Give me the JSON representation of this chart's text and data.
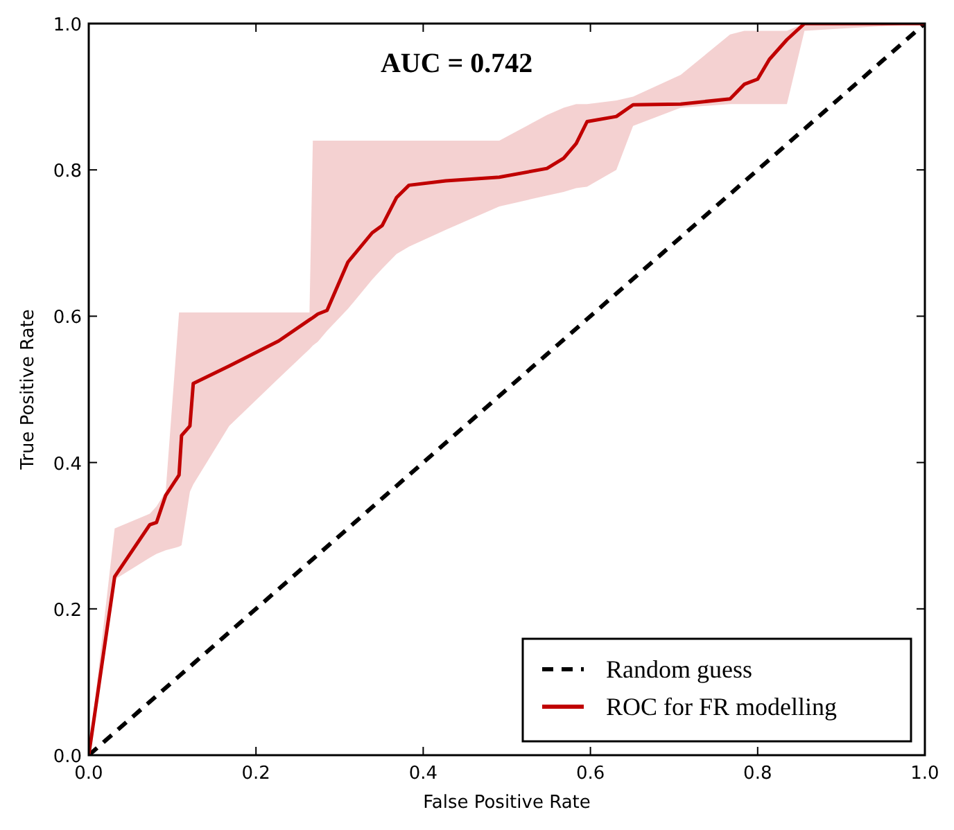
{
  "chart_data": {
    "type": "line",
    "xlabel": "False Positive Rate",
    "ylabel": "True Positive Rate",
    "annotations": [
      "AUC = 0.742"
    ],
    "xlim": [
      0,
      1
    ],
    "ylim": [
      0,
      1
    ],
    "xticks": [
      {
        "value": 0,
        "label": "0.0"
      },
      {
        "value": 0.2,
        "label": "0.2"
      },
      {
        "value": 0.4,
        "label": "0.4"
      },
      {
        "value": 0.6,
        "label": "0.6"
      },
      {
        "value": 0.8,
        "label": "0.8"
      },
      {
        "value": 1,
        "label": "1.0"
      }
    ],
    "yticks": [
      {
        "value": 0,
        "label": "0.0"
      },
      {
        "value": 0.2,
        "label": "0.2"
      },
      {
        "value": 0.4,
        "label": "0.4"
      },
      {
        "value": 0.6,
        "label": "0.6"
      },
      {
        "value": 0.8,
        "label": "0.8"
      },
      {
        "value": 1,
        "label": "1.0"
      }
    ],
    "grid": false,
    "legend": "bottom right",
    "marker": "none",
    "series": [
      {
        "name": "Random guess",
        "color": "#000000",
        "line_style": "dashed",
        "x": [
          0,
          1
        ],
        "values": [
          0,
          1
        ]
      },
      {
        "name": "ROC for FR modelling",
        "color": "#c00000",
        "line_style": "solid",
        "x": [
          0,
          0.031,
          0.073,
          0.081,
          0.092,
          0.108,
          0.111,
          0.121,
          0.125,
          0.168,
          0.227,
          0.264,
          0.268,
          0.274,
          0.285,
          0.31,
          0.339,
          0.351,
          0.368,
          0.383,
          0.427,
          0.491,
          0.548,
          0.568,
          0.583,
          0.596,
          0.631,
          0.651,
          0.708,
          0.767,
          0.784,
          0.8,
          0.814,
          0.835,
          0.856,
          1
        ],
        "values": [
          0,
          0.244,
          0.315,
          0.318,
          0.355,
          0.383,
          0.437,
          0.45,
          0.508,
          0.532,
          0.566,
          0.595,
          0.598,
          0.603,
          0.608,
          0.674,
          0.714,
          0.724,
          0.762,
          0.779,
          0.785,
          0.79,
          0.802,
          0.816,
          0.836,
          0.866,
          0.873,
          0.889,
          0.89,
          0.897,
          0.917,
          0.924,
          0.951,
          0.978,
          1,
          1
        ],
        "upper": [
          0,
          0.31,
          0.33,
          0.34,
          0.36,
          0.605,
          0.605,
          0.605,
          0.605,
          0.605,
          0.605,
          0.605,
          0.84,
          0.84,
          0.84,
          0.84,
          0.84,
          0.84,
          0.84,
          0.84,
          0.84,
          0.84,
          0.875,
          0.885,
          0.89,
          0.89,
          0.895,
          0.9,
          0.93,
          0.985,
          0.99,
          0.99,
          0.99,
          0.99,
          1,
          1
        ],
        "lower": [
          0,
          0.24,
          0.27,
          0.275,
          0.28,
          0.285,
          0.287,
          0.36,
          0.37,
          0.45,
          0.515,
          0.555,
          0.56,
          0.565,
          0.58,
          0.61,
          0.65,
          0.665,
          0.685,
          0.695,
          0.718,
          0.75,
          0.765,
          0.77,
          0.775,
          0.777,
          0.8,
          0.86,
          0.885,
          0.89,
          0.89,
          0.89,
          0.89,
          0.89,
          0.99,
          1
        ]
      }
    ]
  }
}
